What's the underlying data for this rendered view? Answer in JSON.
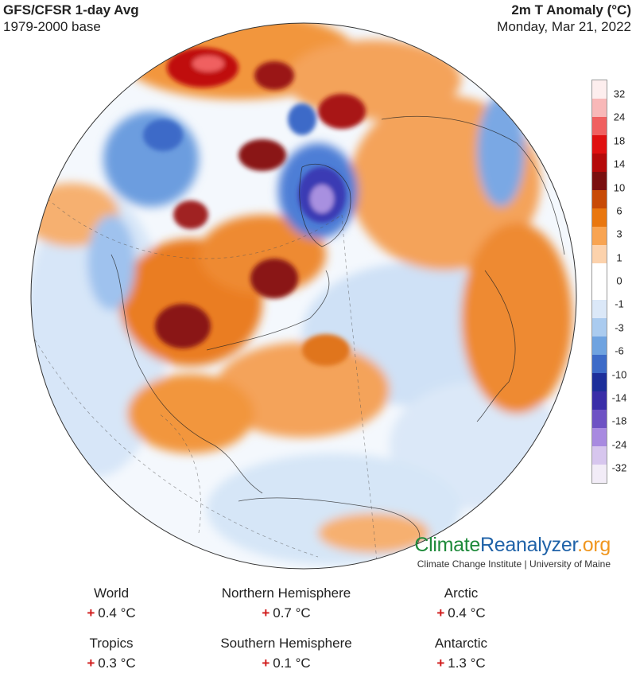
{
  "header": {
    "model_title": "GFS/CFSR 1-day Avg",
    "baseline": "1979-2000 base",
    "variable": "2m T Anomaly (°C)",
    "date": "Monday, Mar 21, 2022"
  },
  "legend": {
    "labels": [
      "32",
      "24",
      "18",
      "14",
      "10",
      "6",
      "3",
      "1",
      "0",
      "-1",
      "-3",
      "-6",
      "-10",
      "-14",
      "-18",
      "-24",
      "-32"
    ],
    "colors": [
      "#fdeeee",
      "#f8b8b8",
      "#f06060",
      "#e01010",
      "#b50a0a",
      "#7a1010",
      "#c84a06",
      "#e9770f",
      "#f8a452",
      "#fcd2ac",
      "#ffffff",
      "#ffffff",
      "#dbe8f8",
      "#aacbef",
      "#6fa3e0",
      "#3d6bc8",
      "#1d2f9a",
      "#3a2ea8",
      "#6e52c4",
      "#a88ae0",
      "#d7c6ee",
      "#f2ecf7"
    ]
  },
  "branding": {
    "name_part1": "Climate",
    "name_part2": "Reanalyzer",
    "name_part3": ".org",
    "affiliation": "Climate Change Institute | University of Maine"
  },
  "stats": [
    {
      "label": "World",
      "sign": "+",
      "value": "0.4 °C"
    },
    {
      "label": "Northern Hemisphere",
      "sign": "+",
      "value": "0.7 °C"
    },
    {
      "label": "Arctic",
      "sign": "+",
      "value": "0.4 °C"
    },
    {
      "label": "Tropics",
      "sign": "+",
      "value": "0.3 °C"
    },
    {
      "label": "Southern Hemisphere",
      "sign": "+",
      "value": "0.1 °C"
    },
    {
      "label": "Antarctic",
      "sign": "+",
      "value": "1.3 °C"
    }
  ]
}
